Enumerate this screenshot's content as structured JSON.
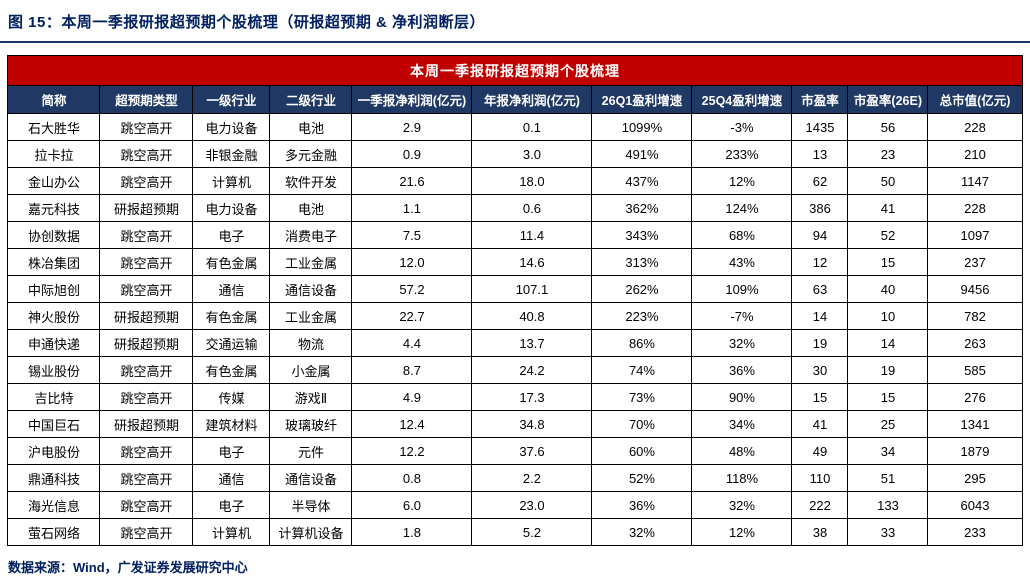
{
  "page": {
    "figure_title": "图 15：本周一季报研报超预期个股梳理（研报超预期 & 净利润断层）",
    "source_note": "数据来源：Wind，广发证券发展研究中心"
  },
  "colors": {
    "navy": "#1F3864",
    "red": "#C00000",
    "title_navy": "#002060",
    "grid_border": "#000000"
  },
  "table": {
    "title": "本周一季报研报超预期个股梳理",
    "columns": [
      "简称",
      "超预期类型",
      "一级行业",
      "二级行业",
      "一季报净利润(亿元)",
      "年报净利润(亿元)",
      "26Q1盈利增速",
      "25Q4盈利增速",
      "市盈率",
      "市盈率(26E)",
      "总市值(亿元)"
    ],
    "rows": [
      [
        "石大胜华",
        "跳空高开",
        "电力设备",
        "电池",
        "2.9",
        "0.1",
        "1099%",
        "-3%",
        "1435",
        "56",
        "228"
      ],
      [
        "拉卡拉",
        "跳空高开",
        "非银金融",
        "多元金融",
        "0.9",
        "3.0",
        "491%",
        "233%",
        "13",
        "23",
        "210"
      ],
      [
        "金山办公",
        "跳空高开",
        "计算机",
        "软件开发",
        "21.6",
        "18.0",
        "437%",
        "12%",
        "62",
        "50",
        "1147"
      ],
      [
        "嘉元科技",
        "研报超预期",
        "电力设备",
        "电池",
        "1.1",
        "0.6",
        "362%",
        "124%",
        "386",
        "41",
        "228"
      ],
      [
        "协创数据",
        "跳空高开",
        "电子",
        "消费电子",
        "7.5",
        "11.4",
        "343%",
        "68%",
        "94",
        "52",
        "1097"
      ],
      [
        "株冶集团",
        "跳空高开",
        "有色金属",
        "工业金属",
        "12.0",
        "14.6",
        "313%",
        "43%",
        "12",
        "15",
        "237"
      ],
      [
        "中际旭创",
        "跳空高开",
        "通信",
        "通信设备",
        "57.2",
        "107.1",
        "262%",
        "109%",
        "63",
        "40",
        "9456"
      ],
      [
        "神火股份",
        "研报超预期",
        "有色金属",
        "工业金属",
        "22.7",
        "40.8",
        "223%",
        "-7%",
        "14",
        "10",
        "782"
      ],
      [
        "申通快递",
        "研报超预期",
        "交通运输",
        "物流",
        "4.4",
        "13.7",
        "86%",
        "32%",
        "19",
        "14",
        "263"
      ],
      [
        "锡业股份",
        "跳空高开",
        "有色金属",
        "小金属",
        "8.7",
        "24.2",
        "74%",
        "36%",
        "30",
        "19",
        "585"
      ],
      [
        "吉比特",
        "跳空高开",
        "传媒",
        "游戏Ⅱ",
        "4.9",
        "17.3",
        "73%",
        "90%",
        "15",
        "15",
        "276"
      ],
      [
        "中国巨石",
        "研报超预期",
        "建筑材料",
        "玻璃玻纤",
        "12.4",
        "34.8",
        "70%",
        "34%",
        "41",
        "25",
        "1341"
      ],
      [
        "沪电股份",
        "跳空高开",
        "电子",
        "元件",
        "12.2",
        "37.6",
        "60%",
        "48%",
        "49",
        "34",
        "1879"
      ],
      [
        "鼎通科技",
        "跳空高开",
        "通信",
        "通信设备",
        "0.8",
        "2.2",
        "52%",
        "118%",
        "110",
        "51",
        "295"
      ],
      [
        "海光信息",
        "跳空高开",
        "电子",
        "半导体",
        "6.0",
        "23.0",
        "36%",
        "32%",
        "222",
        "133",
        "6043"
      ],
      [
        "萤石网络",
        "跳空高开",
        "计算机",
        "计算机设备",
        "1.8",
        "5.2",
        "32%",
        "12%",
        "38",
        "33",
        "233"
      ]
    ]
  }
}
